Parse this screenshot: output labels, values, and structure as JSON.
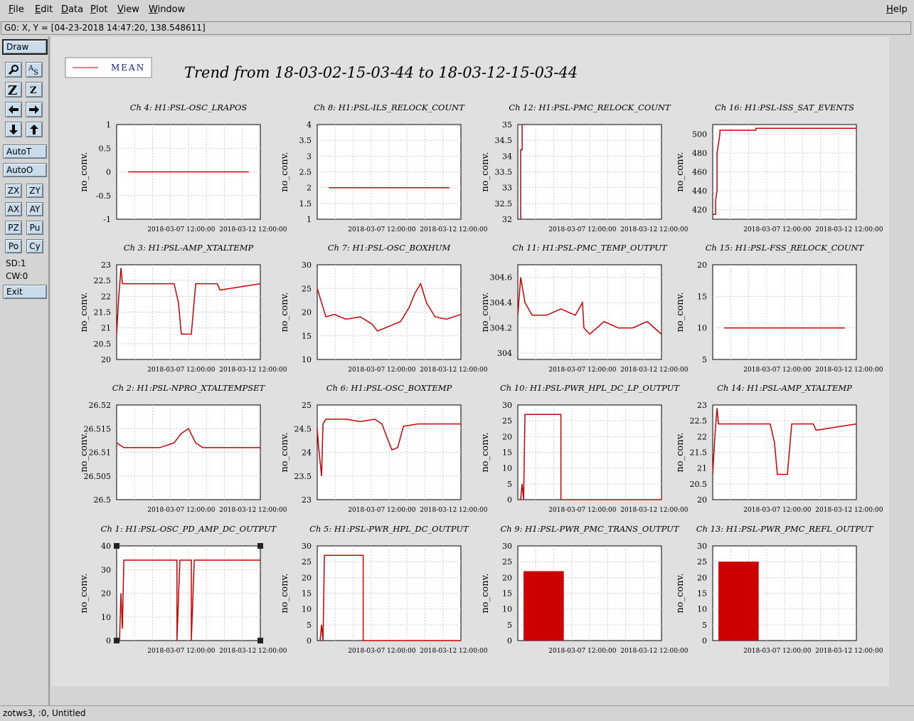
{
  "menu": {
    "file": "File",
    "edit": "Edit",
    "data": "Data",
    "plot": "Plot",
    "view": "View",
    "window": "Window",
    "help": "Help"
  },
  "cursor_readout": "G0: X, Y = [04-23-2018 14:47:20, 138.548611]",
  "toolbar": {
    "draw": "Draw",
    "autot": "AutoT",
    "autoo": "AutoO",
    "zx": "ZX",
    "zy": "ZY",
    "ax": "AX",
    "ay": "AY",
    "pz": "PZ",
    "pu": "Pu",
    "po": "Po",
    "cy": "Cy",
    "sd": "SD:1",
    "cw": "CW:0",
    "exit": "Exit",
    "icons": [
      "magnify-icon",
      "text-icon",
      "zoom-z-icon",
      "zoom-z-small-icon",
      "arrow-left-icon",
      "arrow-right-icon",
      "arrow-down-icon",
      "arrow-up-icon"
    ]
  },
  "legend": {
    "label": "MEAN",
    "color": "#cc0000"
  },
  "main_title": "Trend from 18-03-02-15-03-44 to 18-03-12-15-03-44",
  "status_bar": "zotws3, :0, Untitled",
  "chart_data": [
    {
      "type": "line",
      "title": "Ch 4: H1:PSL-OSC_LRAPOS",
      "ylabel": "no_conv.",
      "ylim": [
        -1,
        1
      ],
      "yticks": [
        "1",
        "0.5",
        "0",
        "-0.5",
        "-1"
      ],
      "xticks": [
        "2018-03-07 12:00:00",
        "2018-03-12 12:00:00"
      ],
      "x": [
        0.08,
        0.92
      ],
      "y": [
        0,
        0
      ]
    },
    {
      "type": "line",
      "title": "Ch 8: H1:PSL-ILS_RELOCK_COUNT",
      "ylabel": "no_conv.",
      "ylim": [
        1,
        4
      ],
      "yticks": [
        "4",
        "3.5",
        "3",
        "2.5",
        "2",
        "1.5",
        "1"
      ],
      "xticks": [
        "2018-03-07 12:00:00",
        "2018-03-12 12:00:00"
      ],
      "x": [
        0.08,
        0.92
      ],
      "y": [
        2,
        2
      ]
    },
    {
      "type": "line",
      "title": "Ch 12: H1:PSL-PMC_RELOCK_COUNT",
      "ylabel": "no_conv.",
      "ylim": [
        32,
        35
      ],
      "yticks": [
        "35",
        "34.5",
        "34",
        "33.5",
        "33",
        "32.5",
        "32"
      ],
      "xticks": [
        "2018-03-07 12:00:00",
        "2018-03-12 12:00:00"
      ],
      "x": [
        0.02,
        0.02,
        0.03,
        0.03
      ],
      "y": [
        32,
        34.2,
        34.2,
        35
      ]
    },
    {
      "type": "line",
      "title": "Ch 16: H1:PSL-ISS_SAT_EVENTS",
      "ylabel": "no_conv.",
      "ylim": [
        410,
        510
      ],
      "yticks": [
        "500",
        "480",
        "460",
        "440",
        "420"
      ],
      "xticks": [
        "2018-03-07 12:00:00",
        "2018-03-12 12:00:00"
      ],
      "x": [
        0,
        0.02,
        0.02,
        0.03,
        0.03,
        0.05,
        0.05,
        0.3,
        0.3,
        1
      ],
      "y": [
        415,
        415,
        430,
        440,
        480,
        500,
        504,
        504,
        506,
        506
      ]
    },
    {
      "type": "line",
      "title": "Ch 3: H1:PSL-AMP_XTALTEMP",
      "ylabel": "no_conv.",
      "ylim": [
        20,
        23
      ],
      "yticks": [
        "23",
        "22.5",
        "22",
        "21.5",
        "21",
        "20.5",
        "20"
      ],
      "xticks": [
        "2018-03-07 12:00:00",
        "2018-03-12 12:00:00"
      ],
      "x": [
        0,
        0.015,
        0.03,
        0.04,
        0.06,
        0.4,
        0.43,
        0.45,
        0.52,
        0.55,
        0.7,
        0.72,
        1
      ],
      "y": [
        20.8,
        22,
        22.9,
        22.4,
        22.4,
        22.4,
        21.8,
        20.8,
        20.8,
        22.4,
        22.4,
        22.2,
        22.4
      ]
    },
    {
      "type": "line",
      "title": "Ch 7: H1:PSL-OSC_BOXHUM",
      "ylabel": "no_conv.",
      "ylim": [
        10,
        30
      ],
      "yticks": [
        "30",
        "25",
        "20",
        "15",
        "10"
      ],
      "xticks": [
        "2018-03-07 12:00:00",
        "2018-03-12 12:00:00"
      ],
      "x": [
        0,
        0.03,
        0.06,
        0.12,
        0.2,
        0.3,
        0.38,
        0.42,
        0.5,
        0.58,
        0.64,
        0.68,
        0.72,
        0.76,
        0.82,
        0.9,
        0.95,
        1
      ],
      "y": [
        25,
        22,
        19,
        19.5,
        18.5,
        19,
        17.5,
        16,
        17,
        18,
        21,
        24,
        26,
        22,
        19,
        18.5,
        19,
        19.5
      ]
    },
    {
      "type": "line",
      "title": "Ch 11: H1:PSL-PMC_TEMP_OUTPUT",
      "ylabel": "no_conv.",
      "ylim": [
        303.95,
        304.7
      ],
      "yticks": [
        "304.6",
        "304.4",
        "304.2",
        "304"
      ],
      "xticks": [
        "2018-03-07 12:00:00",
        "2018-03-12 12:00:00"
      ],
      "x": [
        0,
        0.02,
        0.05,
        0.1,
        0.2,
        0.3,
        0.4,
        0.45,
        0.46,
        0.5,
        0.55,
        0.6,
        0.7,
        0.8,
        0.9,
        1
      ],
      "y": [
        304.3,
        304.6,
        304.4,
        304.3,
        304.3,
        304.35,
        304.3,
        304.4,
        304.2,
        304.15,
        304.2,
        304.25,
        304.2,
        304.2,
        304.25,
        304.15
      ]
    },
    {
      "type": "line",
      "title": "Ch 15: H1:PSL-FSS_RELOCK_COUNT",
      "ylabel": "no_conv.",
      "ylim": [
        5,
        20
      ],
      "yticks": [
        "20",
        "15",
        "10",
        "5"
      ],
      "xticks": [
        "2018-03-07 12:00:00",
        "2018-03-12 12:00:00"
      ],
      "x": [
        0.08,
        0.92
      ],
      "y": [
        10,
        10
      ]
    },
    {
      "type": "line",
      "title": "Ch 2: H1:PSL-NPRO_XTALTEMPSET",
      "ylabel": "no_conv.",
      "ylim": [
        26.5,
        26.52
      ],
      "yticks": [
        "26.52",
        "26.515",
        "26.51",
        "26.505",
        "26.5"
      ],
      "xticks": [
        "2018-03-07 12:00:00",
        "2018-03-12 12:00:00"
      ],
      "x": [
        0,
        0.05,
        0.1,
        0.2,
        0.3,
        0.4,
        0.45,
        0.5,
        0.55,
        0.6,
        0.7,
        0.8,
        0.9,
        1
      ],
      "y": [
        26.512,
        26.511,
        26.511,
        26.511,
        26.511,
        26.512,
        26.514,
        26.515,
        26.512,
        26.511,
        26.511,
        26.511,
        26.511,
        26.511
      ]
    },
    {
      "type": "line",
      "title": "Ch 6: H1:PSL-OSC_BOXTEMP",
      "ylabel": "no_conv.",
      "ylim": [
        23,
        25
      ],
      "yticks": [
        "25",
        "24.5",
        "24",
        "23.5",
        "23"
      ],
      "xticks": [
        "2018-03-07 12:00:00",
        "2018-03-12 12:00:00"
      ],
      "x": [
        0,
        0.01,
        0.03,
        0.04,
        0.06,
        0.2,
        0.3,
        0.4,
        0.45,
        0.5,
        0.52,
        0.56,
        0.6,
        0.7,
        0.8,
        0.9,
        1
      ],
      "y": [
        24.5,
        24.1,
        23.5,
        24.6,
        24.7,
        24.7,
        24.65,
        24.7,
        24.6,
        24.2,
        24.05,
        24.1,
        24.55,
        24.6,
        24.6,
        24.6,
        24.6
      ]
    },
    {
      "type": "line",
      "title": "Ch 10: H1:PSL-PWR_HPL_DC_LP_OUTPUT",
      "ylabel": "no_conv.",
      "ylim": [
        0,
        30
      ],
      "yticks": [
        "30",
        "25",
        "20",
        "15",
        "10",
        "5",
        "0"
      ],
      "xticks": [
        "2018-03-07 12:00:00",
        "2018-03-12 12:00:00"
      ],
      "x": [
        0.02,
        0.03,
        0.04,
        0.05,
        0.05,
        0.3,
        0.3,
        1
      ],
      "y": [
        0,
        5,
        0,
        27,
        27,
        27,
        0,
        0
      ]
    },
    {
      "type": "line",
      "title": "Ch 14: H1:PSL-AMP_XTALTEMP",
      "ylabel": "no_conv.",
      "ylim": [
        20,
        23
      ],
      "yticks": [
        "23",
        "22.5",
        "22",
        "21.5",
        "21",
        "20.5",
        "20"
      ],
      "xticks": [
        "2018-03-07 12:00:00",
        "2018-03-12 12:00:00"
      ],
      "x": [
        0,
        0.015,
        0.03,
        0.04,
        0.06,
        0.4,
        0.43,
        0.45,
        0.52,
        0.55,
        0.7,
        0.72,
        1
      ],
      "y": [
        20.8,
        22,
        22.9,
        22.4,
        22.4,
        22.4,
        21.8,
        20.8,
        20.8,
        22.4,
        22.4,
        22.2,
        22.4
      ]
    },
    {
      "type": "line",
      "title": "Ch 1: H1:PSL-OSC_PD_AMP_DC_OUTPUT",
      "ylabel": "no_conv.",
      "ylim": [
        0,
        40
      ],
      "yticks": [
        "40",
        "30",
        "20",
        "10",
        "0"
      ],
      "xticks": [
        "2018-03-07 12:00:00",
        "2018-03-12 12:00:00"
      ],
      "x": [
        0.02,
        0.03,
        0.04,
        0.05,
        0.05,
        0.42,
        0.42,
        0.44,
        0.44,
        0.52,
        0.52,
        0.54,
        0.54,
        1
      ],
      "y": [
        0,
        20,
        5,
        34,
        34,
        34,
        0,
        34,
        34,
        34,
        0,
        34,
        34,
        34
      ]
    },
    {
      "type": "line",
      "title": "Ch 5: H1:PSL-PWR_HPL_DC_OUTPUT",
      "ylabel": "no_conv.",
      "ylim": [
        0,
        30
      ],
      "yticks": [
        "30",
        "25",
        "20",
        "15",
        "10",
        "5",
        "0"
      ],
      "xticks": [
        "2018-03-07 12:00:00",
        "2018-03-12 12:00:00"
      ],
      "x": [
        0.02,
        0.03,
        0.04,
        0.05,
        0.05,
        0.32,
        0.32,
        1
      ],
      "y": [
        0,
        5,
        0,
        27,
        27,
        27,
        0,
        0
      ]
    },
    {
      "type": "bar",
      "title": "Ch 9: H1:PSL-PWR_PMC_TRANS_OUTPUT",
      "ylabel": "no_conv.",
      "ylim": [
        0,
        30
      ],
      "yticks": [
        "30",
        "25",
        "20",
        "15",
        "10",
        "5",
        "0"
      ],
      "xticks": [
        "2018-03-07 12:00:00",
        "2018-03-12 12:00:00"
      ],
      "x": [
        0.04,
        0.32
      ],
      "y": [
        22,
        22
      ]
    },
    {
      "type": "bar",
      "title": "Ch 13: H1:PSL-PWR_PMC_REFL_OUTPUT",
      "ylabel": "no_conv.",
      "ylim": [
        0,
        30
      ],
      "yticks": [
        "30",
        "25",
        "20",
        "15",
        "10",
        "5",
        "0"
      ],
      "xticks": [
        "2018-03-07 12:00:00",
        "2018-03-12 12:00:00"
      ],
      "x": [
        0.04,
        0.32
      ],
      "y": [
        25,
        25
      ]
    }
  ]
}
